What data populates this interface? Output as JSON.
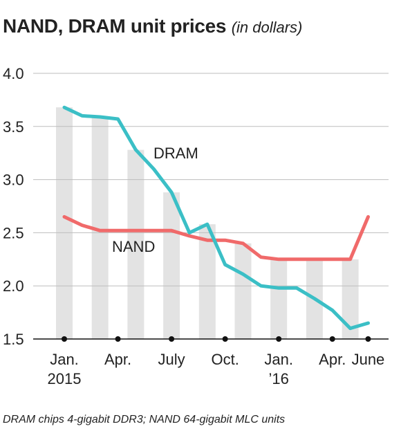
{
  "chart_title": "NAND, DRAM unit prices",
  "chart_subtitle": "(in dollars)",
  "footnote": "DRAM chips 4-gigabit DDR3; NAND 64-gigabit MLC units",
  "colors": {
    "dram": "#3bbfc6",
    "nand": "#f06a6a",
    "bars": "#e3e3e3",
    "grid": "#bdbdbd",
    "axis": "#111111"
  },
  "chart_data": {
    "type": "line",
    "title": "NAND, DRAM unit prices",
    "subtitle": "(in dollars)",
    "xlabel": "",
    "ylabel": "",
    "ylim": [
      1.5,
      4.0
    ],
    "yticks": [
      "4.0",
      "3.5",
      "3.0",
      "2.5",
      "2.0",
      "1.5"
    ],
    "x": [
      "2015-01",
      "2015-02",
      "2015-03",
      "2015-04",
      "2015-05",
      "2015-06",
      "2015-07",
      "2015-08",
      "2015-09",
      "2015-10",
      "2015-11",
      "2015-12",
      "2016-01",
      "2016-02",
      "2016-03",
      "2016-04",
      "2016-05",
      "2016-06"
    ],
    "xtick_labels": [
      {
        "month": "2015-01",
        "lines": [
          "Jan.",
          "2015"
        ]
      },
      {
        "month": "2015-04",
        "lines": [
          "Apr."
        ]
      },
      {
        "month": "2015-07",
        "lines": [
          "July"
        ]
      },
      {
        "month": "2015-10",
        "lines": [
          "Oct."
        ]
      },
      {
        "month": "2016-01",
        "lines": [
          "Jan.",
          "’16"
        ]
      },
      {
        "month": "2016-04",
        "lines": [
          "Apr."
        ]
      },
      {
        "month": "2016-06",
        "lines": [
          "June"
        ]
      }
    ],
    "series": [
      {
        "name": "DRAM",
        "values": [
          3.68,
          3.6,
          3.59,
          3.57,
          3.28,
          3.1,
          2.88,
          2.5,
          2.58,
          2.2,
          2.11,
          2.0,
          1.98,
          1.98,
          1.88,
          1.77,
          1.6,
          1.65
        ]
      },
      {
        "name": "NAND",
        "values": [
          2.65,
          2.57,
          2.52,
          2.52,
          2.52,
          2.52,
          2.52,
          2.47,
          2.43,
          2.43,
          2.4,
          2.27,
          2.25,
          2.25,
          2.25,
          2.25,
          2.25,
          2.65
        ]
      }
    ],
    "bars_alternating": true,
    "grid": true,
    "legend": "inline labels"
  }
}
